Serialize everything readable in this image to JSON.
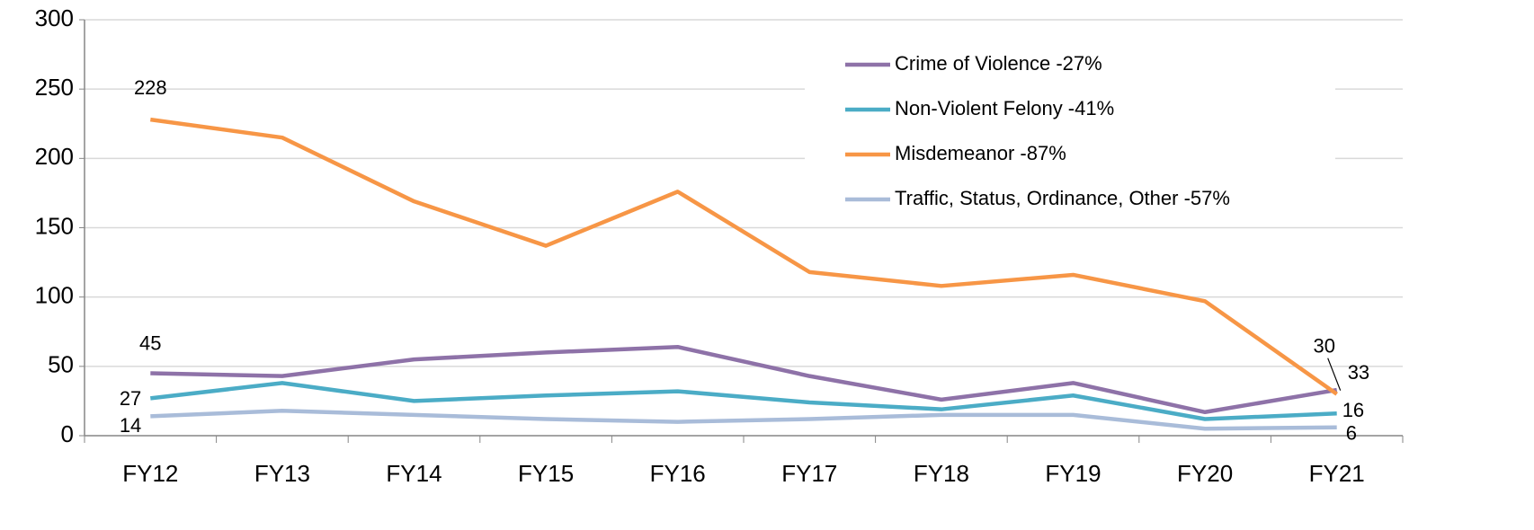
{
  "chart_data": {
    "type": "line",
    "categories": [
      "FY12",
      "FY13",
      "FY14",
      "FY15",
      "FY16",
      "FY17",
      "FY18",
      "FY19",
      "FY20",
      "FY21"
    ],
    "series": [
      {
        "name": "Crime of Violence -27%",
        "color": "#8e72a8",
        "values": [
          45,
          43,
          55,
          60,
          64,
          43,
          26,
          38,
          17,
          33
        ]
      },
      {
        "name": "Non-Violent Felony -41%",
        "color": "#4bacc6",
        "values": [
          27,
          38,
          25,
          29,
          32,
          24,
          19,
          29,
          12,
          16
        ]
      },
      {
        "name": "Misdemeanor -87%",
        "color": "#f79646",
        "values": [
          228,
          215,
          169,
          137,
          176,
          118,
          108,
          116,
          97,
          30
        ]
      },
      {
        "name": "Traffic, Status, Ordinance, Other -57%",
        "color": "#a9bcd9",
        "values": [
          14,
          18,
          15,
          12,
          10,
          12,
          15,
          15,
          5,
          6
        ]
      }
    ],
    "data_labels": [
      0,
      9
    ],
    "ylim": [
      0,
      300
    ],
    "yticks": [
      0,
      50,
      100,
      150,
      200,
      250,
      300
    ],
    "grid": true,
    "legend": "upper right"
  }
}
